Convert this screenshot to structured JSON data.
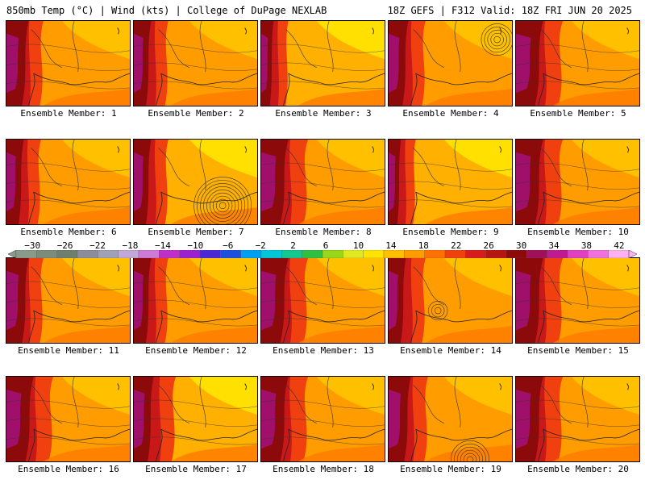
{
  "header": {
    "left": "850mb Temp (°C) | Wind (kts) | College of DuPage NEXLAB",
    "right": "18Z GEFS | F312 Valid: 18Z FRI JUN 20 2025"
  },
  "colorbar": {
    "ticks": [
      "−30",
      "−26",
      "−22",
      "−18",
      "−14",
      "−10",
      "−6",
      "−2",
      "2",
      "6",
      "10",
      "14",
      "18",
      "22",
      "26",
      "30",
      "34",
      "38",
      "42"
    ],
    "colors": [
      "#8a9a8a",
      "#7c8c7c",
      "#6f7f6f",
      "#8c8c9c",
      "#a0a0b8",
      "#c0a8d8",
      "#d07ad8",
      "#c02ec8",
      "#9a20d0",
      "#4a28d8",
      "#1e50e0",
      "#00a0f0",
      "#00c8d8",
      "#10c890",
      "#30c040",
      "#98d818",
      "#e0e820",
      "#ffe400",
      "#ffc000",
      "#ff9c00",
      "#ff7000",
      "#f04010",
      "#d81c1c",
      "#b81410",
      "#8c0a0a",
      "#a0105a",
      "#c01a90",
      "#e040c0",
      "#f070e0",
      "#ffb0f0"
    ]
  },
  "members": [
    {
      "label": "Ensemble Member: 1",
      "variant": 0
    },
    {
      "label": "Ensemble Member: 2",
      "variant": 1
    },
    {
      "label": "Ensemble Member: 3",
      "variant": 2
    },
    {
      "label": "Ensemble Member: 4",
      "variant": 3
    },
    {
      "label": "Ensemble Member: 5",
      "variant": 4
    },
    {
      "label": "Ensemble Member: 6",
      "variant": 1
    },
    {
      "label": "Ensemble Member: 7",
      "variant": 5
    },
    {
      "label": "Ensemble Member: 8",
      "variant": 4
    },
    {
      "label": "Ensemble Member: 9",
      "variant": 2
    },
    {
      "label": "Ensemble Member: 10",
      "variant": 4
    },
    {
      "label": "Ensemble Member: 11",
      "variant": 0
    },
    {
      "label": "Ensemble Member: 12",
      "variant": 1
    },
    {
      "label": "Ensemble Member: 13",
      "variant": 4
    },
    {
      "label": "Ensemble Member: 14",
      "variant": 6
    },
    {
      "label": "Ensemble Member: 15",
      "variant": 4
    },
    {
      "label": "Ensemble Member: 16",
      "variant": 4
    },
    {
      "label": "Ensemble Member: 17",
      "variant": 7
    },
    {
      "label": "Ensemble Member: 18",
      "variant": 4
    },
    {
      "label": "Ensemble Member: 19",
      "variant": 8
    },
    {
      "label": "Ensemble Member: 20",
      "variant": 4
    }
  ]
}
